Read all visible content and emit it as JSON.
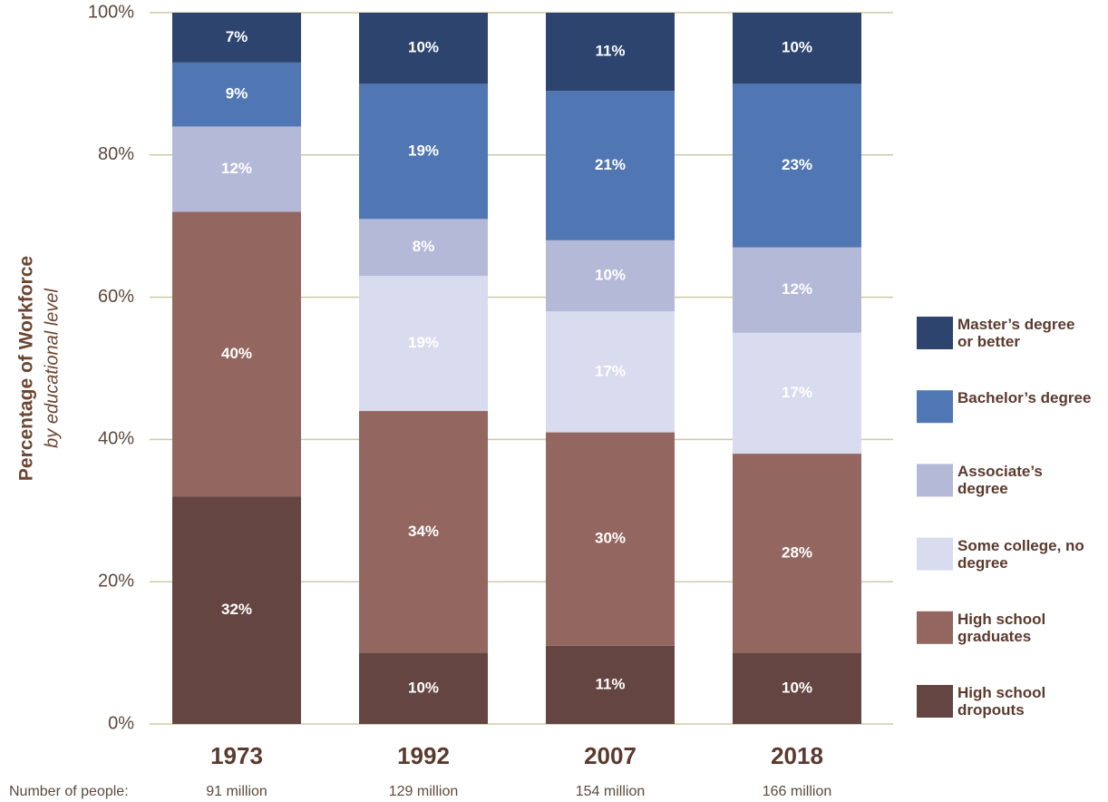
{
  "chart_data": {
    "type": "stacked_bar",
    "y_label": "Percentage of Workforce",
    "y_sublabel": "by educational level",
    "categories": [
      "1973",
      "1992",
      "2007",
      "2018"
    ],
    "people_label": "Number of people:",
    "people": [
      "91 million",
      "129 million",
      "154 million",
      "166 million"
    ],
    "ylim": [
      0,
      100
    ],
    "yticks": [
      {
        "value": 0,
        "label": "0%"
      },
      {
        "value": 20,
        "label": "20%"
      },
      {
        "value": 40,
        "label": "40%"
      },
      {
        "value": 60,
        "label": "60%"
      },
      {
        "value": 80,
        "label": "80%"
      },
      {
        "value": 100,
        "label": "100%"
      }
    ],
    "grid": true,
    "series": [
      {
        "name": "High school dropouts",
        "color": "#654542",
        "values": [
          32,
          10,
          11,
          10
        ],
        "value_labels": [
          "32%",
          "10%",
          "11%",
          "10%"
        ]
      },
      {
        "name": "High school graduates",
        "color": "#93665f",
        "values": [
          40,
          34,
          30,
          28
        ],
        "value_labels": [
          "40%",
          "34%",
          "30%",
          "28%"
        ]
      },
      {
        "name": "Some college, no degree",
        "color": "#d9dbee",
        "values": [
          null,
          19,
          17,
          17
        ],
        "value_labels": [
          null,
          "19%",
          "17%",
          "17%"
        ]
      },
      {
        "name": "Associate’s degree",
        "color": "#b5b9d8",
        "values": [
          12,
          8,
          10,
          12
        ],
        "value_labels": [
          "12%",
          "8%",
          "10%",
          "12%"
        ]
      },
      {
        "name": "Bachelor’s degree",
        "color": "#5077b4",
        "values": [
          9,
          19,
          21,
          23
        ],
        "value_labels": [
          "9%",
          "19%",
          "21%",
          "23%"
        ]
      },
      {
        "name": "Master’s degree or better",
        "color": "#2c446e",
        "values": [
          7,
          10,
          11,
          10
        ],
        "value_labels": [
          "7%",
          "10%",
          "11%",
          "10%"
        ]
      }
    ]
  }
}
